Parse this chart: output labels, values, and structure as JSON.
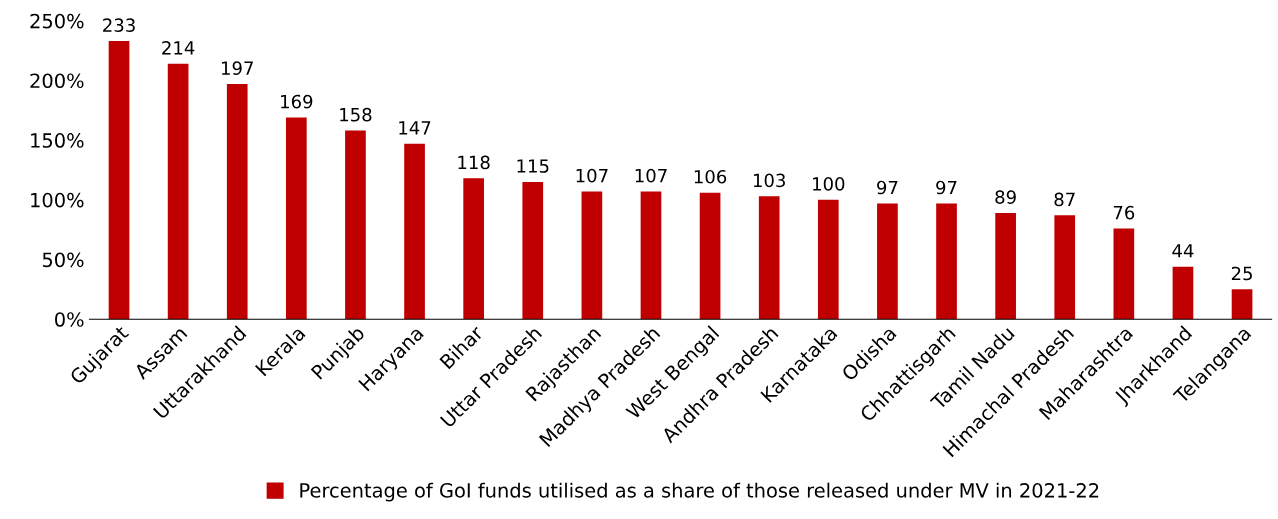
{
  "chart_data": {
    "type": "bar",
    "categories": [
      "Gujarat",
      "Assam",
      "Uttarakhand",
      "Kerala",
      "Punjab",
      "Haryana",
      "Bihar",
      "Uttar Pradesh",
      "Rajasthan",
      "Madhya Pradesh",
      "West Bengal",
      "Andhra Pradesh",
      "Karnataka",
      "Odisha",
      "Chhattisgarh",
      "Tamil Nadu",
      "Himachal Pradesh",
      "Maharashtra",
      "Jharkhand",
      "Telangana"
    ],
    "series": [
      {
        "name": "Percentage of GoI funds utilised as a share of those released under MV in 2021-22",
        "color": "#c00000",
        "values": [
          233,
          214,
          197,
          169,
          158,
          147,
          118,
          115,
          107,
          107,
          106,
          103,
          100,
          97,
          97,
          89,
          87,
          76,
          44,
          25
        ]
      }
    ],
    "data_labels": true,
    "ylim": [
      0,
      250
    ],
    "yticks": [
      {
        "value": 0,
        "label": "0%"
      },
      {
        "value": 50,
        "label": "50%"
      },
      {
        "value": 100,
        "label": "100%"
      },
      {
        "value": 150,
        "label": "150%"
      },
      {
        "value": 200,
        "label": "200%"
      },
      {
        "value": 250,
        "label": "250%"
      }
    ],
    "grid": false,
    "legend": "bottom"
  }
}
